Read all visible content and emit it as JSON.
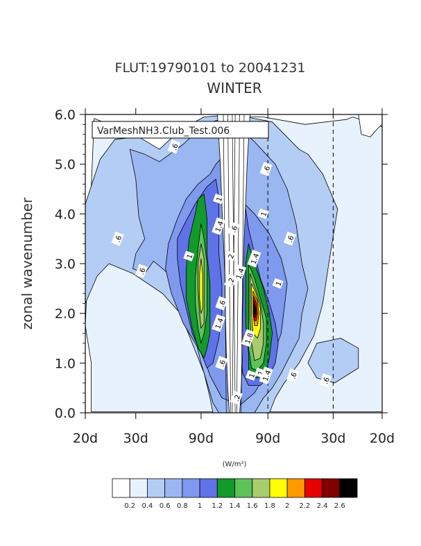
{
  "chart_data": {
    "type": "heatmap",
    "subtype": "filled-contour",
    "title": "FLUT:19790101 to 20041231",
    "subtitle": "WINTER",
    "inset_label": "VarMeshNH3.Club_Test.006",
    "ylabel": "zonal wavenumber",
    "ylim": [
      0,
      6
    ],
    "yticks": [
      "0.0",
      "1.0",
      "2.0",
      "3.0",
      "4.0",
      "5.0",
      "6.0"
    ],
    "xtick_labels": [
      "20d",
      "30d",
      "90d",
      "90d",
      "30d",
      "20d"
    ],
    "units": "(W/m²)",
    "colorbar": {
      "levels": [
        "0.2",
        "0.4",
        "0.6",
        "0.8",
        "1",
        "1.2",
        "1.4",
        "1.6",
        "1.8",
        "2",
        "2.2",
        "2.4",
        "2.6"
      ],
      "colors": [
        "#ffffff",
        "#e8f2fc",
        "#b4cdf5",
        "#9ab7f2",
        "#7e99ee",
        "#6072e8",
        "#129a2c",
        "#5cc25a",
        "#a8cc6e",
        "#ffff00",
        "#ff9900",
        "#e60000",
        "#800000",
        "#000000"
      ]
    },
    "contour_line_labels": [
      ".6",
      ".6",
      ".6",
      ".6",
      "1",
      "1",
      ".6",
      "1",
      "1.4",
      ".6",
      "2",
      "1.4",
      "1.4",
      "1",
      ".6",
      "1",
      "1.8",
      "1",
      "1.4",
      ".6",
      ".6",
      ".2",
      ".2",
      "1.4",
      ".6"
    ],
    "grid": false,
    "dashed_reference_lines": [
      "90d",
      "30d"
    ],
    "peak": {
      "value": 2.6,
      "frequency_label": "90d",
      "zonal_wavenumber": 2.0
    }
  }
}
